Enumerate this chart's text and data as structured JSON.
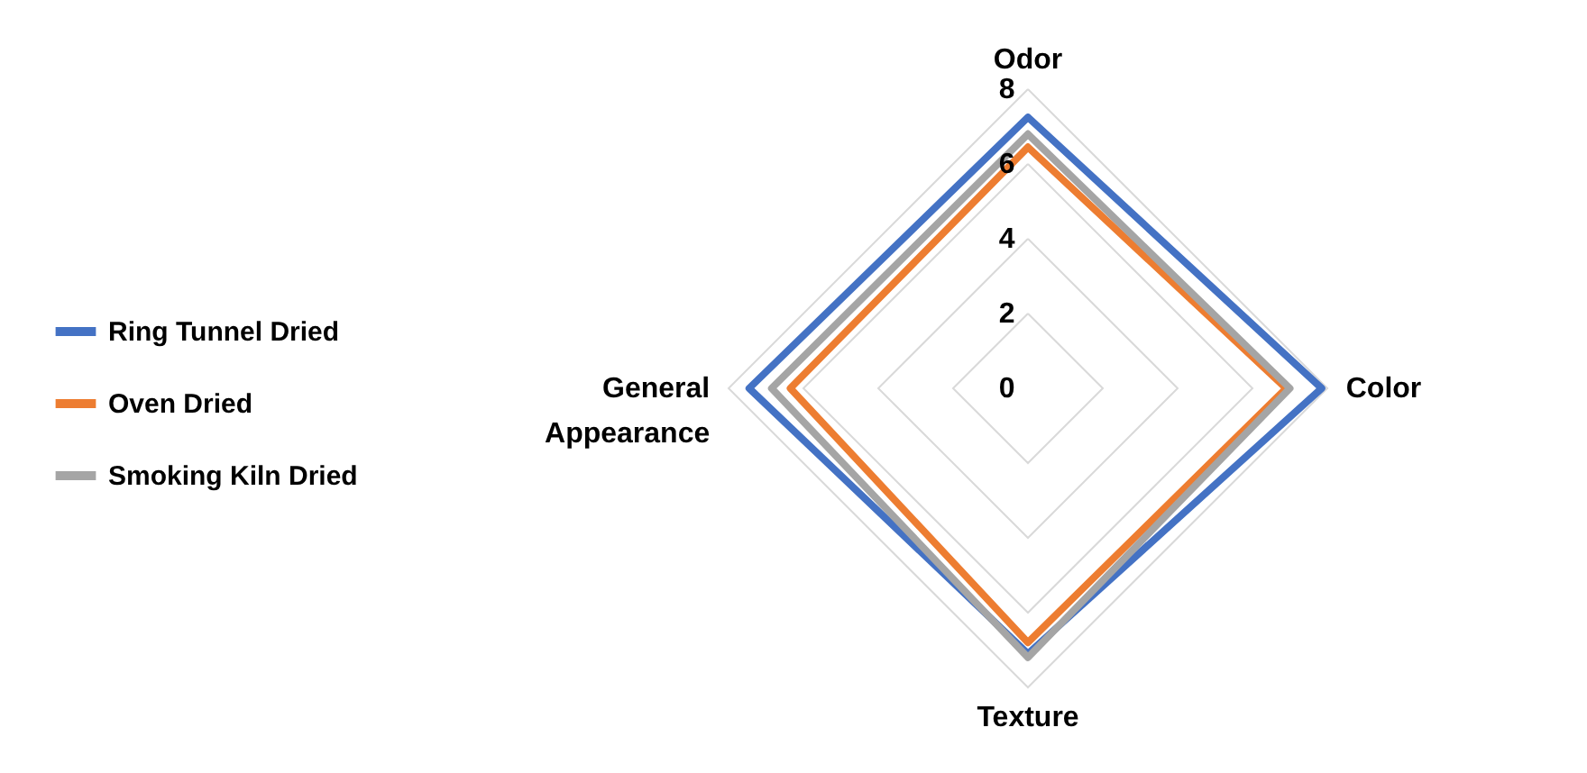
{
  "chart_data": {
    "type": "radar",
    "categories": [
      "Odor",
      "Color",
      "Texture",
      "General Appearance"
    ],
    "series": [
      {
        "name": "Ring Tunnel Dried",
        "color": "#4472c4",
        "values": [
          7.25,
          7.85,
          7.1,
          7.45
        ]
      },
      {
        "name": "Oven Dried",
        "color": "#ed7d31",
        "values": [
          6.45,
          6.9,
          6.8,
          6.35
        ]
      },
      {
        "name": "Smoking Kiln Dried",
        "color": "#a5a5a5",
        "values": [
          6.8,
          7.0,
          7.2,
          6.85
        ]
      }
    ],
    "ylim": [
      0,
      8
    ],
    "yticks": [
      0,
      2,
      4,
      6,
      8
    ],
    "grid": true,
    "legend": "left"
  }
}
